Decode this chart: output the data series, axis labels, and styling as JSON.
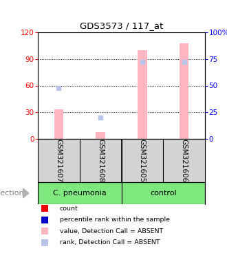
{
  "title": "GDS3573 / 117_at",
  "samples": [
    "GSM321607",
    "GSM321608",
    "GSM321605",
    "GSM321606"
  ],
  "bar_color_absent": "#ffb6c1",
  "dot_color_rank_absent": "#b8c4e8",
  "ylim_left": [
    0,
    120
  ],
  "ylim_right": [
    0,
    100
  ],
  "yticks_left": [
    0,
    30,
    60,
    90,
    120
  ],
  "yticks_right": [
    0,
    25,
    50,
    75,
    100
  ],
  "ytick_labels_right": [
    "0",
    "25",
    "50",
    "75",
    "100%"
  ],
  "sample_values_absent": [
    33,
    8,
    100,
    108
  ],
  "sample_ranks_absent": [
    48,
    20,
    72,
    72
  ],
  "bg_color": "#d3d3d3",
  "green_color": "#7fe87f",
  "legend_items": [
    {
      "color": "#ee0000",
      "label": "count"
    },
    {
      "color": "#0000cc",
      "label": "percentile rank within the sample"
    },
    {
      "color": "#ffb6c1",
      "label": "value, Detection Call = ABSENT"
    },
    {
      "color": "#b8c4e8",
      "label": "rank, Detection Call = ABSENT"
    }
  ]
}
